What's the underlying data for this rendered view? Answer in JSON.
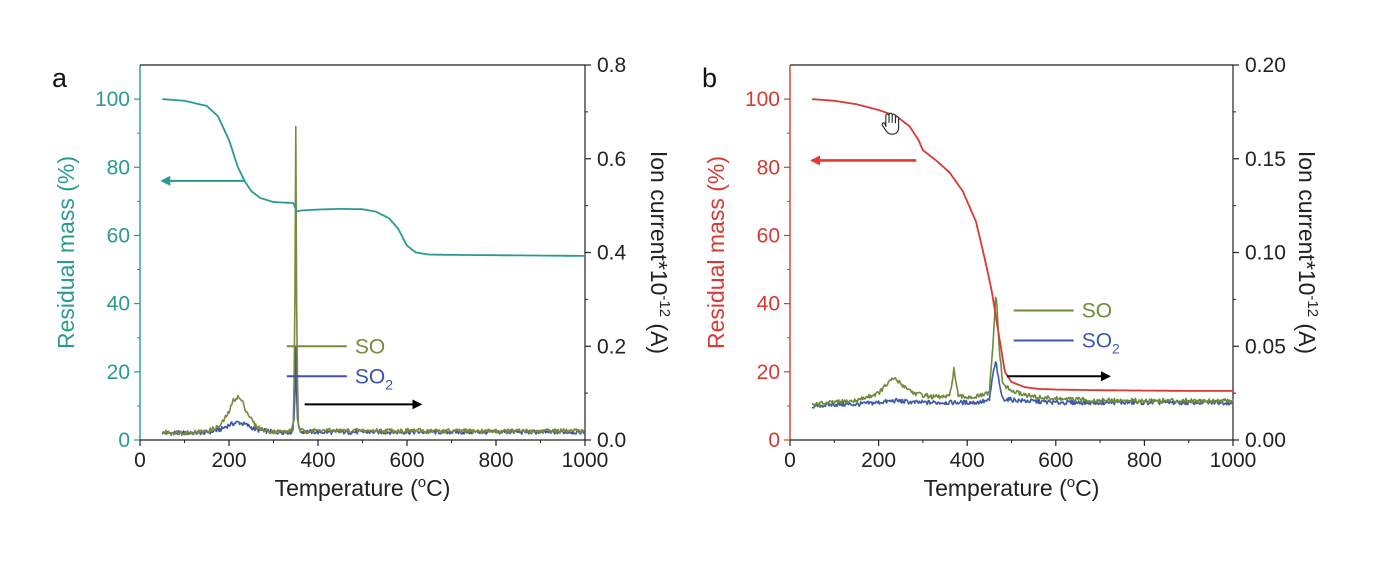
{
  "chart_data": [
    {
      "type": "line",
      "panel_label": "a",
      "title": "",
      "xlabel": "Temperature (oC)",
      "xlabel_base": "Temperature (",
      "xlabel_sup": "o",
      "xlabel_end": "C)",
      "ylabel": "Residual mass (%)",
      "y2label": "Ion current*10-12 (A)",
      "y2label_base": "Ion current*10",
      "y2label_sup": "-12",
      "y2label_end": " (A)",
      "xlim": [
        0,
        1000
      ],
      "ylim": [
        0,
        110
      ],
      "y2lim": [
        0,
        0.8
      ],
      "xticks": [
        "0",
        "200",
        "400",
        "600",
        "800",
        "1000"
      ],
      "yticks": [
        "0",
        "20",
        "40",
        "60",
        "80",
        "100"
      ],
      "y2ticks": [
        "0.0",
        "0.2",
        "0.4",
        "0.6",
        "0.8"
      ],
      "grid": false,
      "legend_position": "lower-center",
      "colors": {
        "mass": "#2a9a91",
        "so": "#7a8a3c",
        "so2": "#3d55a6",
        "arrow_right": "#000000"
      },
      "mass_curve": {
        "axis": "left",
        "x": [
          50,
          100,
          150,
          175,
          200,
          220,
          235,
          250,
          270,
          300,
          330,
          345,
          352,
          360,
          400,
          450,
          500,
          530,
          560,
          580,
          600,
          620,
          650,
          700,
          800,
          900,
          1000
        ],
        "y": [
          100,
          99.5,
          98,
          95,
          88,
          80,
          76,
          73,
          71,
          69.8,
          69.6,
          69.5,
          67,
          67.3,
          67.6,
          67.8,
          67.7,
          67,
          65,
          62,
          57,
          55,
          54.4,
          54.3,
          54.2,
          54.1,
          54
        ]
      },
      "series": [
        {
          "name": "SO",
          "axis": "right",
          "x": [
            50,
            100,
            150,
            180,
            200,
            210,
            220,
            230,
            240,
            260,
            280,
            300,
            330,
            345,
            348,
            350,
            352,
            355,
            360,
            400,
            500,
            600,
            700,
            800,
            900,
            1000
          ],
          "y": [
            0.016,
            0.016,
            0.018,
            0.03,
            0.06,
            0.085,
            0.092,
            0.082,
            0.06,
            0.03,
            0.02,
            0.018,
            0.018,
            0.02,
            0.3,
            0.67,
            0.3,
            0.03,
            0.02,
            0.02,
            0.02,
            0.02,
            0.019,
            0.019,
            0.019,
            0.019
          ]
        },
        {
          "name": "SO2",
          "name_base": "SO",
          "name_sub": "2",
          "axis": "right",
          "x": [
            50,
            100,
            150,
            180,
            200,
            220,
            240,
            260,
            300,
            340,
            347,
            350,
            353,
            360,
            400,
            600,
            800,
            1000
          ],
          "y": [
            0.015,
            0.015,
            0.016,
            0.022,
            0.032,
            0.038,
            0.032,
            0.022,
            0.017,
            0.017,
            0.05,
            0.2,
            0.05,
            0.018,
            0.017,
            0.017,
            0.017,
            0.017
          ]
        }
      ],
      "annotations": [
        {
          "type": "arrow",
          "direction": "left",
          "color": "#2a9a91",
          "x_from": 235,
          "x_to": 50,
          "y": 76,
          "axis": "left"
        },
        {
          "type": "arrow",
          "direction": "right",
          "color": "#000000",
          "x_from": 370,
          "x_to": 630,
          "y": 0.076,
          "axis": "right"
        }
      ]
    },
    {
      "type": "line",
      "panel_label": "b",
      "title": "",
      "xlabel": "Temperature (oC)",
      "xlabel_base": "Temperature (",
      "xlabel_sup": "o",
      "xlabel_end": "C)",
      "ylabel": "Residual mass (%)",
      "y2label": "Ion current*10-12 (A)",
      "y2label_base": "Ion current*10",
      "y2label_sup": "-12",
      "y2label_end": " (A)",
      "xlim": [
        0,
        1000
      ],
      "ylim": [
        0,
        110
      ],
      "y2lim": [
        0,
        0.2
      ],
      "xticks": [
        "0",
        "200",
        "400",
        "600",
        "800",
        "1000"
      ],
      "yticks": [
        "0",
        "20",
        "40",
        "60",
        "80",
        "100"
      ],
      "y2ticks": [
        "0.00",
        "0.05",
        "0.10",
        "0.15",
        "0.20"
      ],
      "grid": false,
      "legend_position": "center-right",
      "colors": {
        "mass": "#d63a33",
        "so": "#6e8a3a",
        "so2": "#3d5aa8",
        "arrow_right": "#000000"
      },
      "mass_curve": {
        "axis": "left",
        "x": [
          50,
          100,
          150,
          200,
          240,
          270,
          290,
          300,
          330,
          360,
          390,
          420,
          440,
          455,
          465,
          475,
          485,
          500,
          530,
          560,
          600,
          700,
          800,
          900,
          1000
        ],
        "y": [
          100,
          99.5,
          98.5,
          96.8,
          95,
          92,
          88,
          85,
          82,
          78.5,
          73,
          64,
          53,
          44,
          36,
          28,
          20,
          17,
          15.5,
          15,
          14.8,
          14.6,
          14.5,
          14.4,
          14.4
        ]
      },
      "series": [
        {
          "name": "SO",
          "axis": "right",
          "x": [
            50,
            100,
            150,
            200,
            220,
            235,
            250,
            280,
            320,
            360,
            365,
            370,
            375,
            380,
            420,
            450,
            458,
            465,
            472,
            480,
            500,
            550,
            600,
            700,
            800,
            900,
            1000
          ],
          "y": [
            0.019,
            0.02,
            0.021,
            0.025,
            0.03,
            0.033,
            0.03,
            0.025,
            0.023,
            0.023,
            0.03,
            0.038,
            0.03,
            0.023,
            0.023,
            0.025,
            0.05,
            0.08,
            0.05,
            0.03,
            0.026,
            0.023,
            0.022,
            0.021,
            0.021,
            0.021,
            0.021
          ]
        },
        {
          "name": "SO2",
          "name_base": "SO",
          "name_sub": "2",
          "axis": "right",
          "x": [
            50,
            100,
            150,
            200,
            240,
            280,
            320,
            360,
            420,
            450,
            458,
            465,
            472,
            480,
            520,
            600,
            700,
            800,
            900,
            1000
          ],
          "y": [
            0.018,
            0.019,
            0.019,
            0.02,
            0.021,
            0.02,
            0.02,
            0.02,
            0.02,
            0.021,
            0.035,
            0.042,
            0.03,
            0.022,
            0.021,
            0.02,
            0.02,
            0.02,
            0.02,
            0.02
          ]
        }
      ],
      "annotations": [
        {
          "type": "arrow",
          "direction": "left",
          "color": "#e8382c",
          "x_from": 285,
          "x_to": 50,
          "y": 82,
          "axis": "left"
        },
        {
          "type": "arrow",
          "direction": "right",
          "color": "#000000",
          "x_from": 490,
          "x_to": 720,
          "y": 0.034,
          "axis": "right"
        }
      ],
      "cursor_icon": "hand-pointer-icon"
    }
  ]
}
